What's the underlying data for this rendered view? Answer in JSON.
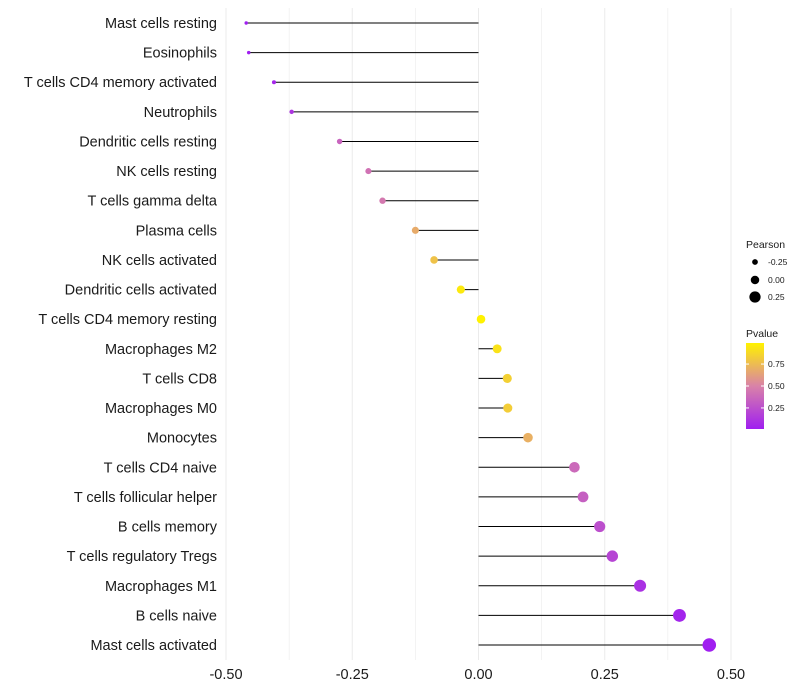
{
  "chart_data": {
    "type": "lollipop",
    "xlim": [
      -0.52,
      0.52
    ],
    "x_ticks": [
      -0.5,
      -0.25,
      0.0,
      0.25,
      0.5
    ],
    "x_tick_labels": [
      "-0.50",
      "-0.25",
      "0.00",
      "0.25",
      "0.50"
    ],
    "grid": true,
    "categories": [
      "Mast cells resting",
      "Eosinophils",
      "T cells CD4 memory activated",
      "Neutrophils",
      "Dendritic cells resting",
      "NK cells resting",
      "T cells gamma delta",
      "Plasma cells",
      "NK cells activated",
      "Dendritic cells activated",
      "T cells CD4 memory resting",
      "Macrophages M2",
      "T cells CD8",
      "Macrophages M0",
      "Monocytes",
      "T cells CD4 naive",
      "T cells follicular helper",
      "B cells memory",
      "T cells regulatory  Tregs ",
      "Macrophages M1",
      "B cells naive",
      "Mast cells activated"
    ],
    "pearson": [
      -0.46,
      -0.455,
      -0.405,
      -0.37,
      -0.275,
      -0.218,
      -0.19,
      -0.125,
      -0.088,
      -0.035,
      0.005,
      0.037,
      0.057,
      0.058,
      0.098,
      0.19,
      0.207,
      0.24,
      0.265,
      0.32,
      0.398,
      0.457
    ],
    "pvalue": [
      0.01,
      0.01,
      0.05,
      0.12,
      0.35,
      0.42,
      0.45,
      0.68,
      0.78,
      0.95,
      0.99,
      0.92,
      0.84,
      0.83,
      0.7,
      0.38,
      0.33,
      0.25,
      0.2,
      0.1,
      0.04,
      0.01
    ],
    "legend_size": {
      "title": "Pearson",
      "labels": [
        "-0.25",
        "0.00",
        "0.25"
      ],
      "values": [
        -0.25,
        0.0,
        0.25
      ]
    },
    "legend_color": {
      "title": "Pvalue",
      "labels": [
        "0.75",
        "0.50",
        "0.25"
      ],
      "values": [
        0.75,
        0.5,
        0.25
      ],
      "range": [
        0.01,
        0.99
      ],
      "low_color": "#a01ff0",
      "mid_color": "#d982a8",
      "high_color": "#fff200"
    }
  }
}
